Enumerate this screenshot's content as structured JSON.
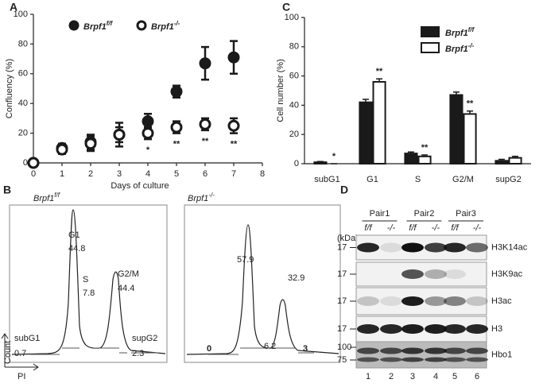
{
  "chart_data": [
    {
      "type": "scatter",
      "panel": "A",
      "x_label": "Days of culture",
      "y_label": "Confluency (%)",
      "x": [
        0,
        1,
        2,
        3,
        4,
        5,
        6,
        7
      ],
      "xlim": [
        0,
        8
      ],
      "xticks": [
        0,
        1,
        2,
        3,
        4,
        5,
        6,
        7,
        8
      ],
      "ylim": [
        0,
        100
      ],
      "yticks": [
        0,
        20,
        40,
        60,
        80,
        100
      ],
      "series": [
        {
          "name": "Brpf1",
          "name_sup": "f/f",
          "color": "#1a1a1a",
          "values": [
            0,
            10,
            14,
            19,
            28,
            48,
            67,
            71
          ],
          "errors": [
            1,
            3,
            5,
            8,
            5,
            4,
            11,
            11
          ]
        },
        {
          "name": "Brpf1",
          "name_sup": "-/-",
          "color": "#ffffff",
          "values": [
            0,
            9,
            13,
            19,
            20,
            24,
            26,
            25
          ],
          "errors": [
            1,
            3,
            5,
            5,
            4,
            4,
            4,
            5
          ]
        }
      ],
      "annotations": [
        null,
        null,
        null,
        null,
        "*",
        "**",
        "**",
        "**"
      ]
    },
    {
      "type": "bar",
      "panel": "C",
      "y_label": "Cell number (%)",
      "categories": [
        "subG1",
        "G1",
        "S",
        "G2/M",
        "supG2"
      ],
      "ylim": [
        0,
        100
      ],
      "yticks": [
        0,
        20,
        40,
        60,
        80,
        100
      ],
      "series": [
        {
          "name": "Brpf1",
          "name_sup": "f/f",
          "color": "#1a1a1a",
          "values": [
            1,
            42,
            7,
            47,
            2
          ],
          "errors": [
            0.5,
            2,
            1,
            2,
            1
          ]
        },
        {
          "name": "Brpf1",
          "name_sup": "-/-",
          "color": "#ffffff",
          "values": [
            0,
            56,
            5,
            34,
            4
          ],
          "errors": [
            0,
            2,
            1,
            2,
            1
          ]
        }
      ],
      "annotations": [
        "*",
        "**",
        "**",
        "**",
        null
      ]
    }
  ],
  "flow": {
    "panel": "B",
    "y_label": "Count",
    "x_label": "PI",
    "left": {
      "title": "Brpf1",
      "title_sup": "f/f",
      "gates": [
        {
          "label": "subG1",
          "value": "0.7"
        },
        {
          "label": "G1",
          "value": "44.8"
        },
        {
          "label": "S",
          "value": "7.8"
        },
        {
          "label": "G2/M",
          "value": "44.4"
        },
        {
          "label": "supG2",
          "value": "2.3"
        }
      ]
    },
    "right": {
      "title": "Brpf1",
      "title_sup": "-/-",
      "gates": [
        "0",
        "57.9",
        "6.2",
        "32.9",
        "3"
      ]
    }
  },
  "blot": {
    "panel": "D",
    "kda_label": "(kDa)",
    "pairs": [
      "Pair1",
      "Pair2",
      "Pair3"
    ],
    "genotypes": [
      "f/f",
      "-/-",
      "f/f",
      "-/-",
      "f/f",
      "-/-"
    ],
    "rows": [
      {
        "antibody": "H3K14ac",
        "markers": [
          17
        ]
      },
      {
        "antibody": "H3K9ac",
        "markers": [
          17
        ]
      },
      {
        "antibody": "H3ac",
        "markers": [
          17
        ]
      },
      {
        "antibody": "H3",
        "markers": [
          17
        ]
      },
      {
        "antibody": "Hbo1",
        "markers": [
          100,
          75
        ]
      }
    ],
    "lanes": [
      1,
      2,
      3,
      4,
      5,
      6
    ]
  }
}
